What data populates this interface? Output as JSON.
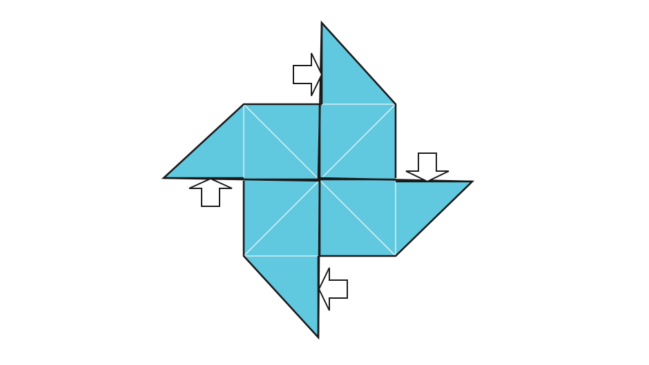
{
  "diagram": {
    "colors": {
      "fill": "#61c9df",
      "outline": "#1a1a1a",
      "crease": "#d2eef5",
      "arrow_fill": "#ffffff"
    },
    "parts": {
      "pinwheel": "pinwheel",
      "flaps": [
        "top-flap",
        "right-flap",
        "bottom-flap",
        "left-flap"
      ],
      "arrows": [
        {
          "icon": "arrow-right-icon",
          "direction": "right"
        },
        {
          "icon": "arrow-down-icon",
          "direction": "down"
        },
        {
          "icon": "arrow-left-icon",
          "direction": "left"
        },
        {
          "icon": "arrow-up-icon",
          "direction": "up"
        }
      ]
    }
  }
}
